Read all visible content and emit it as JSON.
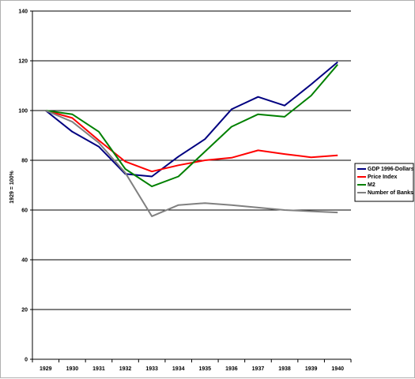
{
  "chart_data": {
    "type": "line",
    "title": "",
    "xlabel": "",
    "ylabel": "1929 = 100%",
    "ylim": [
      0,
      140
    ],
    "yticks": [
      0,
      20,
      40,
      60,
      80,
      100,
      120,
      140
    ],
    "grid": true,
    "legend_position": "right",
    "categories": [
      "1929",
      "1930",
      "1931",
      "1932",
      "1933",
      "1934",
      "1935",
      "1936",
      "1937",
      "1938",
      "1939",
      "1940"
    ],
    "series": [
      {
        "name": "GDP 1996-Dollars",
        "color": "#000080",
        "values": [
          100,
          91.5,
          85.5,
          74.5,
          73.5,
          81.5,
          88.5,
          100.5,
          105.5,
          102,
          110.5,
          119.5
        ]
      },
      {
        "name": "Price Index",
        "color": "#ff0000",
        "values": [
          100,
          97,
          88,
          79.5,
          75.5,
          78,
          80,
          81,
          84,
          82.5,
          81.2,
          82
        ]
      },
      {
        "name": "M2",
        "color": "#008000",
        "values": [
          100,
          98.5,
          91.5,
          76.5,
          69.5,
          73.5,
          83.5,
          93.5,
          98.5,
          97.5,
          106,
          118.5
        ]
      },
      {
        "name": "Number of Banks",
        "color": "#808080",
        "values": [
          100,
          95.5,
          87,
          75,
          57.5,
          62,
          62.8,
          62,
          61,
          60,
          59.5,
          59
        ]
      }
    ]
  }
}
